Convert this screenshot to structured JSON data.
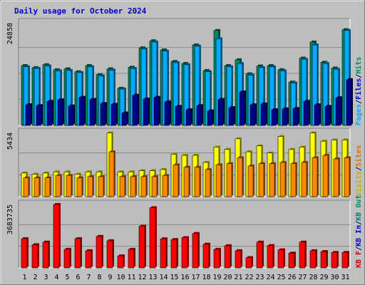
{
  "chart_data": [
    {
      "type": "bar",
      "title": "Daily usage for October 2024",
      "categories": [
        "1",
        "2",
        "3",
        "4",
        "5",
        "6",
        "7",
        "8",
        "9",
        "10",
        "11",
        "12",
        "13",
        "14",
        "15",
        "16",
        "17",
        "18",
        "19",
        "20",
        "21",
        "22",
        "23",
        "24",
        "25",
        "26",
        "27",
        "28",
        "29",
        "30",
        "31"
      ],
      "weekend_days": [
        "5",
        "6",
        "12",
        "13",
        "19",
        "20",
        "26",
        "27"
      ],
      "ylabel_max": "24858",
      "ylim": [
        0,
        24858
      ],
      "right_labels": [
        {
          "text": "Pages",
          "color": "#00aaff"
        },
        {
          "text": "/",
          "color": "#00008b"
        },
        {
          "text": "Files",
          "color": "#0000cc"
        },
        {
          "text": "/",
          "color": "#00008b"
        },
        {
          "text": "Hits",
          "color": "#008866"
        }
      ],
      "series": [
        {
          "name": "Hits",
          "color": "#008866",
          "values": [
            14500,
            14000,
            14700,
            13500,
            13700,
            13000,
            14500,
            12300,
            13700,
            9000,
            14100,
            18800,
            20500,
            18300,
            15500,
            15000,
            19500,
            13300,
            23000,
            14500,
            15900,
            12500,
            14400,
            14500,
            13500,
            10500,
            16300,
            20200,
            15300,
            13900,
            23200
          ]
        },
        {
          "name": "Files",
          "color": "#00aaff",
          "values": [
            14200,
            13800,
            14400,
            13200,
            13300,
            12800,
            14200,
            12000,
            13400,
            8800,
            13800,
            18500,
            20200,
            18000,
            15200,
            14700,
            19200,
            13000,
            21000,
            14200,
            15000,
            12200,
            14000,
            14200,
            13200,
            10300,
            16000,
            19500,
            15000,
            13600,
            23000
          ]
        },
        {
          "name": "Pages",
          "color": "#00008b",
          "values": [
            5000,
            4800,
            5800,
            6200,
            4700,
            6800,
            6300,
            5300,
            5100,
            3000,
            7300,
            6400,
            6800,
            5700,
            4600,
            3800,
            4800,
            3500,
            6300,
            4300,
            8100,
            5000,
            5200,
            3800,
            4000,
            4100,
            5800,
            5000,
            4600,
            6700,
            11100
          ]
        }
      ]
    },
    {
      "type": "bar",
      "ylabel_max": "5434",
      "ylim": [
        0,
        5434
      ],
      "right_labels": [
        {
          "text": "Visits",
          "color": "#ccaa00"
        },
        {
          "text": "/",
          "color": "#00008b"
        },
        {
          "text": "Sites",
          "color": "#e07000"
        }
      ],
      "series": [
        {
          "name": "Visits",
          "color": "#ffff00",
          "values": [
            2000,
            1900,
            2000,
            2100,
            2100,
            1900,
            2100,
            2100,
            5400,
            2100,
            2100,
            2200,
            2200,
            2300,
            3600,
            3500,
            3500,
            2900,
            4200,
            4000,
            4900,
            3800,
            4300,
            3700,
            5100,
            4000,
            4200,
            5400,
            4700,
            4800,
            4800
          ]
        },
        {
          "name": "Sites",
          "color": "#ff8800",
          "values": [
            1600,
            1600,
            1600,
            1800,
            1800,
            1600,
            1700,
            1700,
            3800,
            1700,
            1700,
            1700,
            1700,
            1800,
            2700,
            2500,
            2500,
            2300,
            2700,
            2800,
            3300,
            2600,
            2800,
            2800,
            2900,
            2800,
            2900,
            3300,
            3500,
            3200,
            3300
          ]
        }
      ]
    },
    {
      "type": "bar",
      "ylabel_max": "3683735",
      "ylim": [
        0,
        3683735
      ],
      "right_labels": [
        {
          "text": "KB F",
          "color": "#cc0000"
        },
        {
          "text": "/",
          "color": "#00008b"
        },
        {
          "text": "KB In",
          "color": "#0000cc"
        },
        {
          "text": "/",
          "color": "#00008b"
        },
        {
          "text": "KB Out",
          "color": "#008866"
        }
      ],
      "series": [
        {
          "name": "KB F",
          "color": "#ff0000",
          "values": [
            1700000,
            1350000,
            1500000,
            3683735,
            1080000,
            1700000,
            1000000,
            1830000,
            1580000,
            700000,
            1080000,
            2420000,
            3500000,
            1690000,
            1650000,
            1760000,
            2000000,
            1380000,
            1080000,
            1290000,
            1000000,
            600000,
            1500000,
            1300000,
            1050000,
            860000,
            1500000,
            1000000,
            950000,
            900000,
            900000
          ]
        }
      ]
    }
  ]
}
